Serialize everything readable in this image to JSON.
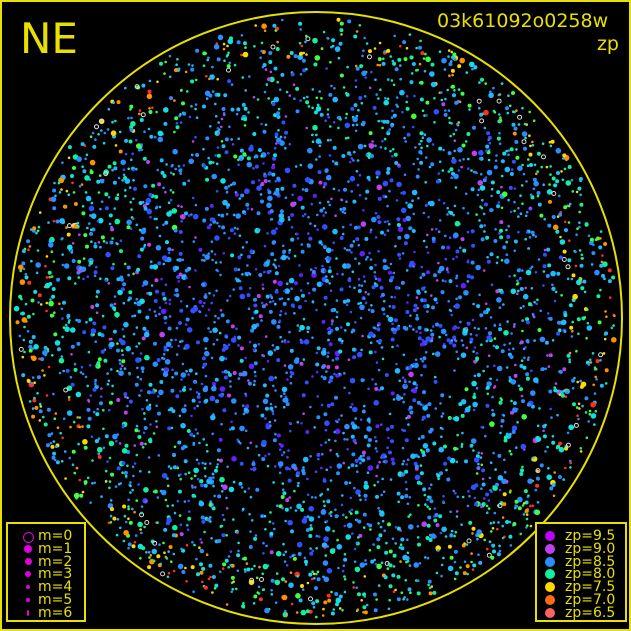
{
  "header": {
    "direction": "NE",
    "frame_id": "03k61092o0258w",
    "metric": "zp"
  },
  "chart_data": {
    "type": "scatter",
    "title": "03k61092o0258w",
    "subtitle": "zp",
    "annotation": "NE",
    "projection": "all-sky circular field",
    "grid": false,
    "circle_color": "#e8e000",
    "size_legend": {
      "placement": "bottom-left",
      "entries": [
        {
          "label": "m=0"
        },
        {
          "label": "m=1"
        },
        {
          "label": "m=2"
        },
        {
          "label": "m=3"
        },
        {
          "label": "m=4"
        },
        {
          "label": "m=5"
        },
        {
          "label": "m=6"
        }
      ]
    },
    "color_legend": {
      "placement": "bottom-right",
      "entries": [
        {
          "label": "zp=9.5",
          "zp": 9.5,
          "color": "#c000ff"
        },
        {
          "label": "zp=9.0",
          "zp": 9.0,
          "color": "#c040f0"
        },
        {
          "label": "zp=8.5",
          "zp": 8.5,
          "color": "#2a8cff"
        },
        {
          "label": "zp=8.0",
          "zp": 8.0,
          "color": "#10f0a0"
        },
        {
          "label": "zp=7.5",
          "zp": 7.5,
          "color": "#ffd800"
        },
        {
          "label": "zp=7.0",
          "zp": 7.0,
          "color": "#ff6a10"
        },
        {
          "label": "zp=6.5",
          "zp": 6.5,
          "color": "#ff6060"
        }
      ]
    },
    "distribution": "higher zp (blue/purple) toward center, lower zp (green/yellow/orange/red) toward edge"
  }
}
